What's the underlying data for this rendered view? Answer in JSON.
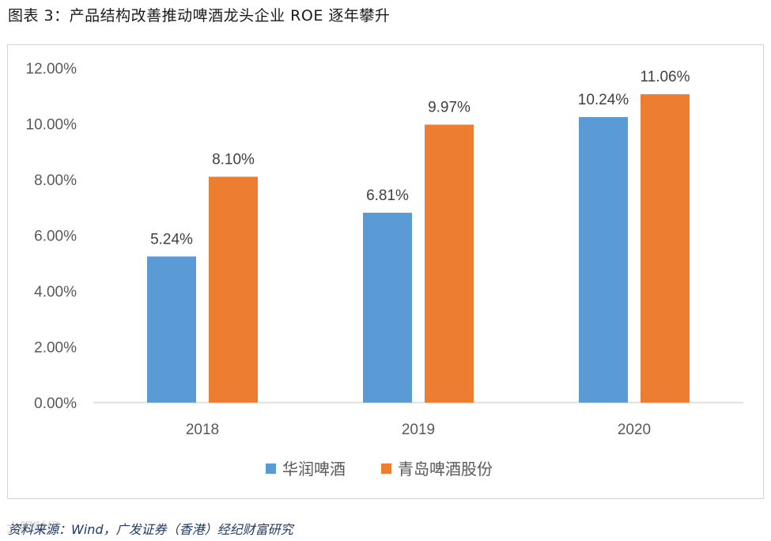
{
  "header": {
    "title": "图表 3：产品结构改善推动啤酒龙头企业 ROE 逐年攀升"
  },
  "footer": {
    "source": "资料来源：Wind，广发证券（香港）经纪财富研究",
    "watermark": "大眼财经"
  },
  "colors": {
    "series_1": "#5B9BD5",
    "series_2": "#ED7D31",
    "axis": "#d9d9d9"
  },
  "chart_data": {
    "type": "bar",
    "title": "",
    "xlabel": "",
    "ylabel": "",
    "categories": [
      "2018",
      "2019",
      "2020"
    ],
    "series": [
      {
        "name": "华润啤酒",
        "values": [
          5.24,
          6.81,
          10.24
        ],
        "labels": [
          "5.24%",
          "6.81%",
          "10.24%"
        ]
      },
      {
        "name": "青岛啤酒股份",
        "values": [
          8.1,
          9.97,
          11.06
        ],
        "labels": [
          "8.10%",
          "9.97%",
          "11.06%"
        ]
      }
    ],
    "ylim": [
      0,
      12
    ],
    "yticks": [
      0,
      2,
      4,
      6,
      8,
      10,
      12
    ],
    "ytick_labels": [
      "0.00%",
      "2.00%",
      "4.00%",
      "6.00%",
      "8.00%",
      "10.00%",
      "12.00%"
    ],
    "grid": false,
    "legend_position": "bottom-center"
  }
}
